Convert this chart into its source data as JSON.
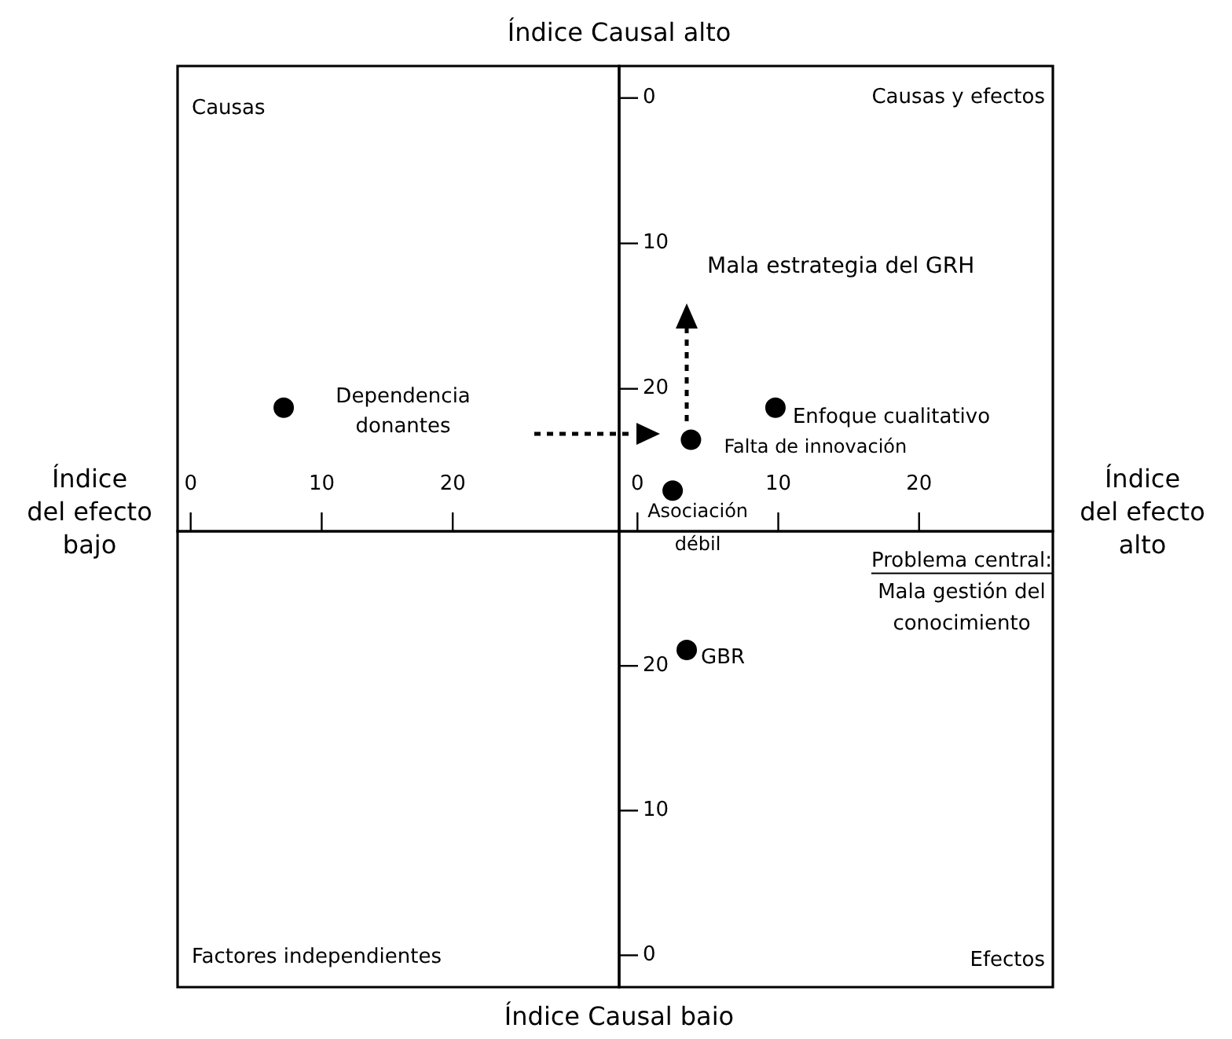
{
  "chart_data": [
    {
      "type": "scatter",
      "x": [
        7.1
      ],
      "values": [
        21.3
      ],
      "color": "#000000",
      "marker": "circle",
      "tick_labels": "x",
      "xlim": [
        -1.0,
        32.7
      ],
      "xticks": [
        0,
        10,
        20
      ],
      "ylim": [
        29.8,
        -2.2
      ],
      "annotations": [
        "Índice\ndel efecto\nbajo",
        "Causas",
        {
          "text": "Dependencia\ndonantes",
          "x": 7.1,
          "y": 21.3
        }
      ]
    },
    {
      "type": "scatter",
      "x": [
        9.8,
        3.8,
        2.5
      ],
      "values": [
        21.3,
        23.5,
        27.0
      ],
      "color": "#000000",
      "marker": "circle",
      "xlim": [
        -1.3,
        29.5
      ],
      "xticks": [
        0,
        10,
        20
      ],
      "ylim": [
        29.8,
        -2.2
      ],
      "yticks": [
        0,
        10,
        20
      ],
      "annotations": [
        "Índice Causal alto",
        "Índice\ndel efecto\nalto",
        "Causas y efectos",
        "Mala estrategia del GRH",
        {
          "text": "Enfoque cualitativo",
          "x": 9.8,
          "y": 21.3
        },
        {
          "text": "Falta de innovación",
          "x": 3.8,
          "y": 23.5
        },
        {
          "text": "Asociación\ndébil",
          "x": 2.5,
          "y": 27.0
        }
      ]
    },
    {
      "type": "scatter",
      "tick_labels": false,
      "xlim": [
        -1.0,
        32.7
      ],
      "ylim": [
        -2.2,
        29.3
      ],
      "annotations": [
        "Factores independientes"
      ]
    },
    {
      "type": "scatter",
      "x": [
        3.5
      ],
      "values": [
        21.1
      ],
      "color": "#000000",
      "marker": "circle",
      "tick_labels": "y",
      "xlim": [
        -1.3,
        29.5
      ],
      "ylim": [
        -2.2,
        29.3
      ],
      "yticks": [
        0,
        10,
        20
      ],
      "annotations": [
        "Índice Causal baio",
        "Efectos",
        "Problema central:\nMala gestión del\nconocimiento",
        {
          "text": "GBR",
          "x": 3.5,
          "y": 21.1
        }
      ]
    }
  ]
}
